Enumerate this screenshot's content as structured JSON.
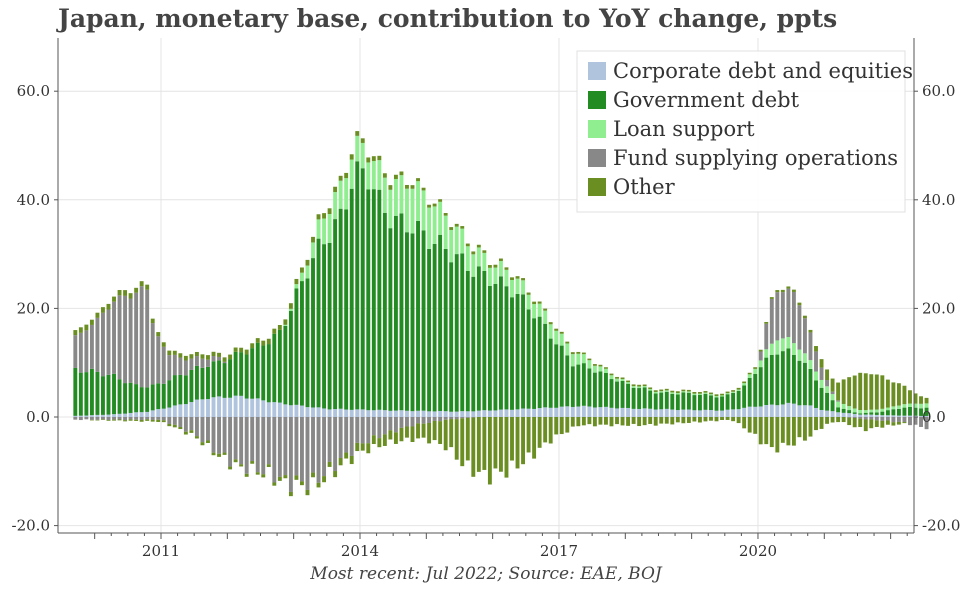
{
  "chart_data": {
    "type": "bar",
    "stacked": true,
    "title": "Japan, monetary base, contribution to YoY change, ppts",
    "source": "Most recent: Jul 2022; Source: EAE, BOJ",
    "xlabel": "",
    "ylabel": "",
    "ylim": [
      -20,
      70
    ],
    "yticks": [
      -20,
      0,
      20,
      40,
      60
    ],
    "ytick_labels": [
      "-20.0",
      "0.0",
      "20.0",
      "40.0",
      "60.0"
    ],
    "xticks": [
      2011,
      2014,
      2017,
      2020
    ],
    "xtick_labels": [
      "2011",
      "2014",
      "2017",
      "2020"
    ],
    "grid": true,
    "legend_position": "top-right",
    "period_start": "2009-09",
    "period_end": "2022-07",
    "frequency": "monthly",
    "series": [
      {
        "name": "Corporate debt and equities",
        "color": "#b0c4de",
        "anchors": [
          [
            2009.7,
            0.2
          ],
          [
            2010.3,
            0.5
          ],
          [
            2010.8,
            1.0
          ],
          [
            2011.2,
            2.0
          ],
          [
            2011.7,
            3.5
          ],
          [
            2012.2,
            3.8
          ],
          [
            2012.8,
            2.5
          ],
          [
            2013.5,
            1.5
          ],
          [
            2014.5,
            1.2
          ],
          [
            2015.5,
            1.0
          ],
          [
            2016.5,
            1.5
          ],
          [
            2017.3,
            2.0
          ],
          [
            2018.0,
            1.6
          ],
          [
            2019.0,
            1.3
          ],
          [
            2019.5,
            1.2
          ],
          [
            2020.0,
            2.0
          ],
          [
            2020.5,
            2.5
          ],
          [
            2020.8,
            2.0
          ],
          [
            2021.0,
            1.2
          ],
          [
            2021.5,
            0.5
          ],
          [
            2022.0,
            0.3
          ],
          [
            2022.5,
            0.2
          ]
        ]
      },
      {
        "name": "Government debt",
        "color": "#228b22",
        "anchors": [
          [
            2009.7,
            8.5
          ],
          [
            2010.0,
            8.0
          ],
          [
            2010.3,
            7.0
          ],
          [
            2010.6,
            5.0
          ],
          [
            2010.9,
            4.5
          ],
          [
            2011.1,
            5.0
          ],
          [
            2011.3,
            5.5
          ],
          [
            2011.6,
            6.0
          ],
          [
            2011.9,
            6.5
          ],
          [
            2012.2,
            8.0
          ],
          [
            2012.5,
            10.0
          ],
          [
            2012.8,
            13.0
          ],
          [
            2013.2,
            25.0
          ],
          [
            2013.4,
            30.0
          ],
          [
            2013.7,
            35.0
          ],
          [
            2013.9,
            43.0
          ],
          [
            2014.1,
            44.0
          ],
          [
            2014.3,
            38.0
          ],
          [
            2014.5,
            35.0
          ],
          [
            2014.8,
            34.0
          ],
          [
            2015.0,
            32.0
          ],
          [
            2015.3,
            30.0
          ],
          [
            2015.7,
            26.0
          ],
          [
            2016.0,
            24.0
          ],
          [
            2016.3,
            22.0
          ],
          [
            2016.6,
            18.0
          ],
          [
            2016.9,
            13.0
          ],
          [
            2017.2,
            8.0
          ],
          [
            2017.5,
            7.0
          ],
          [
            2018.0,
            4.5
          ],
          [
            2018.5,
            3.0
          ],
          [
            2019.0,
            3.0
          ],
          [
            2019.5,
            2.5
          ],
          [
            2019.8,
            4.0
          ],
          [
            2020.0,
            7.0
          ],
          [
            2020.3,
            10.0
          ],
          [
            2020.6,
            9.0
          ],
          [
            2020.9,
            5.0
          ],
          [
            2021.2,
            1.0
          ],
          [
            2021.5,
            0.2
          ],
          [
            2021.8,
            0.5
          ],
          [
            2022.2,
            1.5
          ],
          [
            2022.5,
            1.5
          ]
        ]
      },
      {
        "name": "Loan support",
        "color": "#90ee90",
        "anchors": [
          [
            2009.7,
            0
          ],
          [
            2012.8,
            0
          ],
          [
            2013.0,
            0.5
          ],
          [
            2013.3,
            3.0
          ],
          [
            2013.5,
            5.0
          ],
          [
            2013.8,
            5.5
          ],
          [
            2014.1,
            4.5
          ],
          [
            2014.4,
            6.5
          ],
          [
            2014.8,
            8.0
          ],
          [
            2015.1,
            7.0
          ],
          [
            2015.4,
            5.5
          ],
          [
            2015.7,
            4.0
          ],
          [
            2016.0,
            3.0
          ],
          [
            2016.3,
            3.0
          ],
          [
            2016.6,
            2.5
          ],
          [
            2016.9,
            2.5
          ],
          [
            2017.3,
            2.0
          ],
          [
            2017.6,
            1.0
          ],
          [
            2018.0,
            0.3
          ],
          [
            2019.7,
            0.2
          ],
          [
            2020.0,
            1.0
          ],
          [
            2020.3,
            2.5
          ],
          [
            2020.6,
            2.0
          ],
          [
            2020.9,
            1.5
          ],
          [
            2021.2,
            1.0
          ],
          [
            2021.6,
            0.5
          ],
          [
            2022.0,
            0.5
          ],
          [
            2022.5,
            0.8
          ]
        ]
      },
      {
        "name": "Fund supplying operations",
        "color": "#888888",
        "anchors": [
          [
            2009.7,
            6.0
          ],
          [
            2010.0,
            9.0
          ],
          [
            2010.3,
            14.0
          ],
          [
            2010.6,
            17.0
          ],
          [
            2010.8,
            18.0
          ],
          [
            2010.9,
            10.0
          ],
          [
            2011.1,
            5.0
          ],
          [
            2011.3,
            3.0
          ],
          [
            2011.5,
            2.0
          ],
          [
            2011.8,
            1.0
          ],
          [
            2012.0,
            0
          ],
          [
            2020.0,
            0
          ],
          [
            2020.2,
            8.0
          ],
          [
            2020.5,
            9.5
          ],
          [
            2020.7,
            7.0
          ],
          [
            2020.9,
            3.0
          ],
          [
            2021.1,
            0.5
          ],
          [
            2021.3,
            0
          ],
          [
            2022.3,
            0
          ]
        ]
      },
      {
        "name": "Other",
        "color": "#6b8e23",
        "anchors": [
          [
            2009.7,
            1.0
          ],
          [
            2010.5,
            1.0
          ],
          [
            2011.0,
            0.8
          ],
          [
            2012.0,
            0.8
          ],
          [
            2013.0,
            1.0
          ],
          [
            2013.5,
            1.0
          ],
          [
            2014.5,
            0.8
          ],
          [
            2015.0,
            0.5
          ],
          [
            2016.0,
            0.5
          ],
          [
            2017.5,
            0.3
          ],
          [
            2020.0,
            0.3
          ],
          [
            2020.8,
            0.5
          ],
          [
            2021.2,
            3.0
          ],
          [
            2021.4,
            6.0
          ],
          [
            2021.7,
            7.0
          ],
          [
            2022.0,
            5.0
          ],
          [
            2022.3,
            2.5
          ],
          [
            2022.5,
            1.0
          ]
        ]
      }
    ],
    "negative_series": [
      {
        "name": "Fund supplying operations",
        "color": "#888888",
        "anchors": [
          [
            2009.7,
            -0.5
          ],
          [
            2010.5,
            -0.5
          ],
          [
            2011.0,
            -0.5
          ],
          [
            2011.5,
            -3.0
          ],
          [
            2011.9,
            -7.0
          ],
          [
            2012.2,
            -9.0
          ],
          [
            2012.6,
            -10.0
          ],
          [
            2012.9,
            -12.0
          ],
          [
            2013.3,
            -12.0
          ],
          [
            2013.6,
            -9.0
          ],
          [
            2014.0,
            -5.0
          ],
          [
            2014.4,
            -3.0
          ],
          [
            2014.8,
            -1.5
          ],
          [
            2015.3,
            -0.5
          ],
          [
            2015.8,
            0
          ],
          [
            2021.3,
            0
          ],
          [
            2021.7,
            -0.5
          ],
          [
            2022.2,
            -1.0
          ],
          [
            2022.5,
            -2.0
          ]
        ]
      },
      {
        "name": "Other",
        "color": "#6b8e23",
        "anchors": [
          [
            2009.7,
            0
          ],
          [
            2011.5,
            -0.5
          ],
          [
            2012.5,
            -0.5
          ],
          [
            2013.5,
            -1.0
          ],
          [
            2014.0,
            -1.5
          ],
          [
            2014.5,
            -2.0
          ],
          [
            2015.0,
            -3.0
          ],
          [
            2015.3,
            -5.0
          ],
          [
            2015.6,
            -9.0
          ],
          [
            2015.9,
            -11.0
          ],
          [
            2016.2,
            -10.0
          ],
          [
            2016.5,
            -8.0
          ],
          [
            2016.9,
            -4.0
          ],
          [
            2017.3,
            -1.5
          ],
          [
            2017.7,
            -1.5
          ],
          [
            2018.3,
            -1.5
          ],
          [
            2019.0,
            -1.0
          ],
          [
            2019.6,
            -0.5
          ],
          [
            2019.8,
            -2.0
          ],
          [
            2020.0,
            -4.0
          ],
          [
            2020.2,
            -6.0
          ],
          [
            2020.5,
            -5.0
          ],
          [
            2020.8,
            -3.5
          ],
          [
            2021.0,
            -1.5
          ],
          [
            2021.2,
            -0.8
          ],
          [
            2021.6,
            -2.0
          ],
          [
            2021.9,
            -1.0
          ],
          [
            2022.3,
            0
          ],
          [
            2022.5,
            0
          ]
        ]
      }
    ]
  }
}
